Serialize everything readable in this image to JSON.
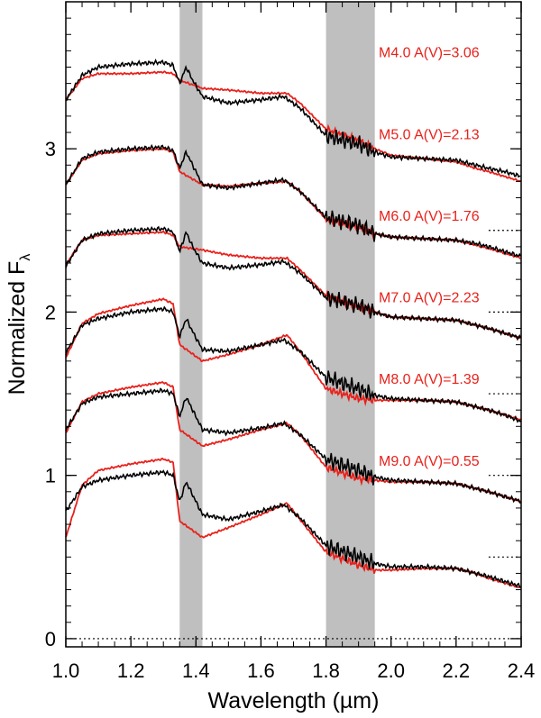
{
  "chart_data": {
    "type": "line",
    "xlabel": "Wavelength (µm)",
    "ylabel_main": "Normalized F",
    "ylabel_sub": "λ",
    "xlim": [
      1.0,
      2.4
    ],
    "ylim": [
      -0.05,
      3.9
    ],
    "x_ticks": [
      {
        "value": 1.0,
        "label": "1.0"
      },
      {
        "value": 1.2,
        "label": "1.2"
      },
      {
        "value": 1.4,
        "label": "1.4"
      },
      {
        "value": 1.6,
        "label": "1.6"
      },
      {
        "value": 1.8,
        "label": "1.8"
      },
      {
        "value": 2.0,
        "label": "2.0"
      },
      {
        "value": 2.2,
        "label": "2.2"
      },
      {
        "value": 2.4,
        "label": "2.4"
      }
    ],
    "y_ticks": [
      {
        "value": 0,
        "label": "0"
      },
      {
        "value": 1,
        "label": "1"
      },
      {
        "value": 2,
        "label": "2"
      },
      {
        "value": 3,
        "label": "3"
      }
    ],
    "shaded_bands": [
      [
        1.35,
        1.42
      ],
      [
        1.8,
        1.95
      ]
    ],
    "zero_lines_xrange": [
      2.3,
      2.4
    ],
    "colors": {
      "observed": "#000000",
      "template": "#e8211b",
      "band": "#bfbfbf"
    },
    "series": [
      {
        "name": "M4.0 A(V)=3.06",
        "label": "M4.0 A(V)=3.06",
        "offset": 2.5,
        "observed": [
          [
            1.0,
            0.8
          ],
          [
            1.05,
            0.95
          ],
          [
            1.1,
            1.0
          ],
          [
            1.2,
            1.02
          ],
          [
            1.3,
            1.03
          ],
          [
            1.33,
            1.01
          ],
          [
            1.35,
            0.9
          ],
          [
            1.37,
            1.0
          ],
          [
            1.39,
            0.92
          ],
          [
            1.42,
            0.82
          ],
          [
            1.5,
            0.78
          ],
          [
            1.6,
            0.8
          ],
          [
            1.67,
            0.82
          ],
          [
            1.72,
            0.75
          ],
          [
            1.8,
            0.58
          ],
          [
            1.9,
            0.53
          ],
          [
            1.95,
            0.48
          ],
          [
            2.0,
            0.45
          ],
          [
            2.1,
            0.44
          ],
          [
            2.2,
            0.43
          ],
          [
            2.26,
            0.4
          ],
          [
            2.3,
            0.38
          ],
          [
            2.35,
            0.36
          ],
          [
            2.4,
            0.33
          ]
        ],
        "template": [
          [
            1.0,
            0.8
          ],
          [
            1.05,
            0.93
          ],
          [
            1.1,
            0.96
          ],
          [
            1.2,
            0.96
          ],
          [
            1.3,
            0.97
          ],
          [
            1.33,
            0.96
          ],
          [
            1.35,
            0.92
          ],
          [
            1.42,
            0.87
          ],
          [
            1.5,
            0.86
          ],
          [
            1.6,
            0.84
          ],
          [
            1.68,
            0.84
          ],
          [
            1.72,
            0.78
          ],
          [
            1.8,
            0.62
          ],
          [
            1.9,
            0.55
          ],
          [
            1.95,
            0.5
          ],
          [
            2.0,
            0.46
          ],
          [
            2.1,
            0.44
          ],
          [
            2.2,
            0.42
          ],
          [
            2.26,
            0.38
          ],
          [
            2.3,
            0.36
          ],
          [
            2.35,
            0.33
          ],
          [
            2.4,
            0.3
          ]
        ]
      },
      {
        "name": "M5.0 A(V)=2.13",
        "label": "M5.0 A(V)=2.13",
        "offset": 2.0,
        "observed": [
          [
            1.0,
            0.78
          ],
          [
            1.05,
            0.94
          ],
          [
            1.1,
            0.98
          ],
          [
            1.2,
            1.0
          ],
          [
            1.3,
            1.01
          ],
          [
            1.33,
            0.99
          ],
          [
            1.35,
            0.88
          ],
          [
            1.37,
            0.98
          ],
          [
            1.39,
            0.9
          ],
          [
            1.42,
            0.78
          ],
          [
            1.5,
            0.76
          ],
          [
            1.6,
            0.79
          ],
          [
            1.67,
            0.81
          ],
          [
            1.72,
            0.74
          ],
          [
            1.8,
            0.58
          ],
          [
            1.9,
            0.53
          ],
          [
            1.95,
            0.48
          ],
          [
            2.0,
            0.46
          ],
          [
            2.1,
            0.45
          ],
          [
            2.2,
            0.44
          ],
          [
            2.26,
            0.42
          ],
          [
            2.3,
            0.4
          ],
          [
            2.35,
            0.37
          ],
          [
            2.4,
            0.34
          ]
        ],
        "template": [
          [
            1.0,
            0.78
          ],
          [
            1.05,
            0.93
          ],
          [
            1.1,
            0.97
          ],
          [
            1.2,
            0.99
          ],
          [
            1.3,
            1.0
          ],
          [
            1.33,
            0.98
          ],
          [
            1.35,
            0.86
          ],
          [
            1.42,
            0.78
          ],
          [
            1.5,
            0.77
          ],
          [
            1.6,
            0.79
          ],
          [
            1.68,
            0.8
          ],
          [
            1.72,
            0.74
          ],
          [
            1.8,
            0.57
          ],
          [
            1.9,
            0.52
          ],
          [
            1.95,
            0.48
          ],
          [
            2.0,
            0.46
          ],
          [
            2.1,
            0.45
          ],
          [
            2.2,
            0.44
          ],
          [
            2.26,
            0.41
          ],
          [
            2.3,
            0.39
          ],
          [
            2.35,
            0.36
          ],
          [
            2.4,
            0.33
          ]
        ]
      },
      {
        "name": "M6.0 A(V)=1.76",
        "label": "M6.0 A(V)=1.76",
        "offset": 1.5,
        "observed": [
          [
            1.0,
            0.78
          ],
          [
            1.05,
            0.94
          ],
          [
            1.1,
            0.98
          ],
          [
            1.2,
            1.0
          ],
          [
            1.3,
            1.01
          ],
          [
            1.33,
            0.99
          ],
          [
            1.35,
            0.87
          ],
          [
            1.37,
            0.99
          ],
          [
            1.39,
            0.9
          ],
          [
            1.42,
            0.8
          ],
          [
            1.5,
            0.77
          ],
          [
            1.6,
            0.79
          ],
          [
            1.67,
            0.81
          ],
          [
            1.72,
            0.74
          ],
          [
            1.8,
            0.59
          ],
          [
            1.9,
            0.54
          ],
          [
            1.95,
            0.5
          ],
          [
            2.0,
            0.47
          ],
          [
            2.1,
            0.46
          ],
          [
            2.2,
            0.45
          ],
          [
            2.26,
            0.42
          ],
          [
            2.3,
            0.4
          ],
          [
            2.35,
            0.37
          ],
          [
            2.4,
            0.34
          ]
        ],
        "template": [
          [
            1.0,
            0.79
          ],
          [
            1.05,
            0.94
          ],
          [
            1.1,
            0.97
          ],
          [
            1.2,
            0.98
          ],
          [
            1.3,
            0.99
          ],
          [
            1.33,
            0.97
          ],
          [
            1.35,
            0.9
          ],
          [
            1.42,
            0.88
          ],
          [
            1.5,
            0.85
          ],
          [
            1.6,
            0.83
          ],
          [
            1.68,
            0.83
          ],
          [
            1.72,
            0.76
          ],
          [
            1.8,
            0.6
          ],
          [
            1.9,
            0.53
          ],
          [
            1.95,
            0.5
          ],
          [
            2.0,
            0.47
          ],
          [
            2.1,
            0.46
          ],
          [
            2.2,
            0.45
          ],
          [
            2.26,
            0.42
          ],
          [
            2.3,
            0.4
          ],
          [
            2.35,
            0.37
          ],
          [
            2.4,
            0.34
          ]
        ]
      },
      {
        "name": "M7.0 A(V)=2.23",
        "label": "M7.0 A(V)=2.23",
        "offset": 1.0,
        "observed": [
          [
            1.0,
            0.75
          ],
          [
            1.05,
            0.92
          ],
          [
            1.1,
            0.96
          ],
          [
            1.2,
            1.0
          ],
          [
            1.3,
            1.02
          ],
          [
            1.33,
            1.0
          ],
          [
            1.35,
            0.85
          ],
          [
            1.37,
            0.96
          ],
          [
            1.39,
            0.88
          ],
          [
            1.42,
            0.77
          ],
          [
            1.5,
            0.76
          ],
          [
            1.6,
            0.8
          ],
          [
            1.67,
            0.83
          ],
          [
            1.72,
            0.76
          ],
          [
            1.8,
            0.6
          ],
          [
            1.9,
            0.53
          ],
          [
            1.95,
            0.49
          ],
          [
            2.0,
            0.47
          ],
          [
            2.1,
            0.46
          ],
          [
            2.2,
            0.45
          ],
          [
            2.26,
            0.42
          ],
          [
            2.3,
            0.4
          ],
          [
            2.35,
            0.37
          ],
          [
            2.4,
            0.33
          ]
        ],
        "template": [
          [
            1.0,
            0.72
          ],
          [
            1.05,
            0.93
          ],
          [
            1.1,
            0.99
          ],
          [
            1.2,
            1.04
          ],
          [
            1.3,
            1.08
          ],
          [
            1.33,
            1.05
          ],
          [
            1.35,
            0.8
          ],
          [
            1.42,
            0.7
          ],
          [
            1.5,
            0.74
          ],
          [
            1.6,
            0.8
          ],
          [
            1.68,
            0.86
          ],
          [
            1.72,
            0.76
          ],
          [
            1.8,
            0.53
          ],
          [
            1.9,
            0.47
          ],
          [
            1.95,
            0.46
          ],
          [
            2.0,
            0.46
          ],
          [
            2.1,
            0.46
          ],
          [
            2.2,
            0.45
          ],
          [
            2.26,
            0.42
          ],
          [
            2.3,
            0.4
          ],
          [
            2.35,
            0.37
          ],
          [
            2.4,
            0.34
          ]
        ]
      },
      {
        "name": "M8.0 A(V)=1.39",
        "label": "M8.0 A(V)=1.39",
        "offset": 0.5,
        "observed": [
          [
            1.0,
            0.78
          ],
          [
            1.05,
            0.94
          ],
          [
            1.1,
            0.98
          ],
          [
            1.2,
            1.0
          ],
          [
            1.3,
            1.02
          ],
          [
            1.33,
            1.0
          ],
          [
            1.35,
            0.86
          ],
          [
            1.37,
            0.98
          ],
          [
            1.39,
            0.9
          ],
          [
            1.42,
            0.78
          ],
          [
            1.5,
            0.76
          ],
          [
            1.6,
            0.79
          ],
          [
            1.67,
            0.82
          ],
          [
            1.72,
            0.75
          ],
          [
            1.8,
            0.6
          ],
          [
            1.9,
            0.53
          ],
          [
            1.95,
            0.49
          ],
          [
            2.0,
            0.47
          ],
          [
            2.1,
            0.46
          ],
          [
            2.2,
            0.45
          ],
          [
            2.26,
            0.42
          ],
          [
            2.3,
            0.4
          ],
          [
            2.35,
            0.37
          ],
          [
            2.4,
            0.34
          ]
        ],
        "template": [
          [
            1.0,
            0.76
          ],
          [
            1.05,
            0.95
          ],
          [
            1.1,
            1.0
          ],
          [
            1.2,
            1.04
          ],
          [
            1.3,
            1.07
          ],
          [
            1.33,
            1.04
          ],
          [
            1.35,
            0.78
          ],
          [
            1.42,
            0.68
          ],
          [
            1.5,
            0.72
          ],
          [
            1.6,
            0.78
          ],
          [
            1.68,
            0.82
          ],
          [
            1.72,
            0.75
          ],
          [
            1.8,
            0.55
          ],
          [
            1.9,
            0.48
          ],
          [
            1.95,
            0.47
          ],
          [
            2.0,
            0.46
          ],
          [
            2.1,
            0.46
          ],
          [
            2.2,
            0.45
          ],
          [
            2.26,
            0.42
          ],
          [
            2.3,
            0.4
          ],
          [
            2.35,
            0.37
          ],
          [
            2.4,
            0.34
          ]
        ]
      },
      {
        "name": "M9.0 A(V)=0.55",
        "label": "M9.0 A(V)=0.55",
        "offset": 0.0,
        "observed": [
          [
            1.0,
            0.78
          ],
          [
            1.05,
            0.93
          ],
          [
            1.1,
            0.97
          ],
          [
            1.2,
            1.0
          ],
          [
            1.3,
            1.02
          ],
          [
            1.33,
            1.0
          ],
          [
            1.35,
            0.84
          ],
          [
            1.37,
            0.96
          ],
          [
            1.39,
            0.88
          ],
          [
            1.42,
            0.76
          ],
          [
            1.5,
            0.73
          ],
          [
            1.6,
            0.78
          ],
          [
            1.67,
            0.82
          ],
          [
            1.72,
            0.74
          ],
          [
            1.8,
            0.57
          ],
          [
            1.9,
            0.5
          ],
          [
            1.95,
            0.46
          ],
          [
            2.0,
            0.44
          ],
          [
            2.1,
            0.44
          ],
          [
            2.2,
            0.43
          ],
          [
            2.26,
            0.4
          ],
          [
            2.3,
            0.38
          ],
          [
            2.35,
            0.35
          ],
          [
            2.4,
            0.32
          ]
        ],
        "template": [
          [
            1.0,
            0.62
          ],
          [
            1.05,
            0.94
          ],
          [
            1.1,
            1.03
          ],
          [
            1.2,
            1.07
          ],
          [
            1.3,
            1.1
          ],
          [
            1.33,
            1.08
          ],
          [
            1.35,
            0.72
          ],
          [
            1.42,
            0.62
          ],
          [
            1.5,
            0.68
          ],
          [
            1.6,
            0.76
          ],
          [
            1.68,
            0.83
          ],
          [
            1.72,
            0.73
          ],
          [
            1.8,
            0.53
          ],
          [
            1.9,
            0.45
          ],
          [
            1.95,
            0.42
          ],
          [
            2.0,
            0.42
          ],
          [
            2.1,
            0.43
          ],
          [
            2.2,
            0.43
          ],
          [
            2.26,
            0.4
          ],
          [
            2.3,
            0.37
          ],
          [
            2.35,
            0.34
          ],
          [
            2.4,
            0.31
          ]
        ]
      }
    ]
  }
}
